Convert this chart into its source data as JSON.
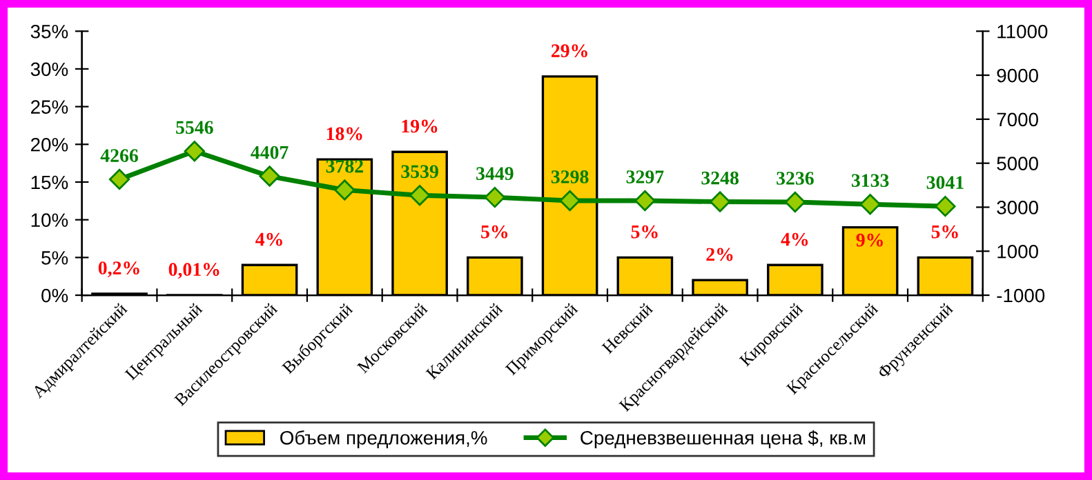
{
  "chart_data": {
    "type": "bar",
    "categories": [
      "Адмиралтейский",
      "Центральный",
      "Василеостровский",
      "Выборгский",
      "Московский",
      "Калининский",
      "Приморский",
      "Невский",
      "Красногвардейский",
      "Кировский",
      "Красносельский",
      "Фрунзенский"
    ],
    "series": [
      {
        "name": "Объем предложения,%",
        "color": "#ffcc00",
        "values": [
          0.2,
          0.01,
          4,
          18,
          19,
          5,
          29,
          5,
          2,
          4,
          9,
          5
        ],
        "value_labels": [
          "0,2%",
          "0,01%",
          "4%",
          "18%",
          "19%",
          "5%",
          "29%",
          "5%",
          "2%",
          "4%",
          "9%",
          "5%"
        ]
      },
      {
        "name": "Средневзвешенная цена $, кв.м",
        "type": "line",
        "axis": "y2",
        "color": "#008000",
        "marker": "diamond",
        "values": [
          4266,
          5546,
          4407,
          3782,
          3539,
          3449,
          3298,
          3297,
          3248,
          3236,
          3133,
          3041
        ],
        "value_labels": [
          "4266",
          "5546",
          "4407",
          "3782",
          "3539",
          "3449",
          "3298",
          "3297",
          "3248",
          "3236",
          "3133",
          "3041"
        ]
      }
    ],
    "ylim": [
      0,
      35
    ],
    "yticks": [
      {
        "value": 0,
        "label": "0%"
      },
      {
        "value": 5,
        "label": "5%"
      },
      {
        "value": 10,
        "label": "10%"
      },
      {
        "value": 15,
        "label": "15%"
      },
      {
        "value": 20,
        "label": "20%"
      },
      {
        "value": 25,
        "label": "25%"
      },
      {
        "value": 30,
        "label": "30%"
      },
      {
        "value": 35,
        "label": "35%"
      }
    ],
    "y2lim": [
      -1000,
      11000
    ],
    "y2ticks": [
      -1000,
      1000,
      3000,
      5000,
      7000,
      9000,
      11000
    ],
    "legend": "bottom",
    "grid": false
  }
}
